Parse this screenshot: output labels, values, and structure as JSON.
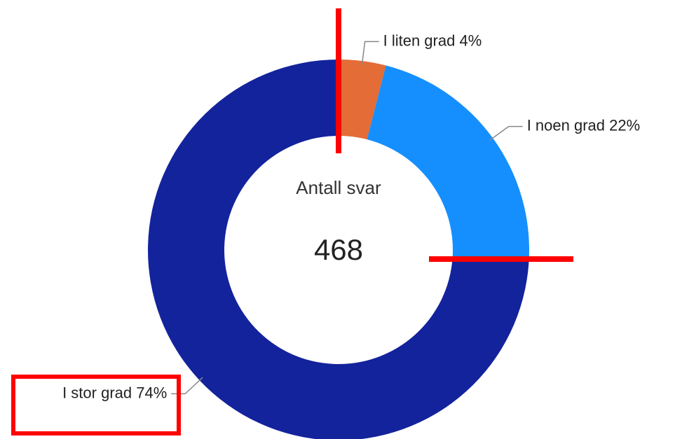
{
  "chart_data": {
    "type": "pie",
    "center_label": "Antall svar",
    "center_value": "468",
    "categories": [
      "I liten grad",
      "I noen grad",
      "I stor grad"
    ],
    "values": [
      4,
      22,
      74
    ],
    "value_labels": [
      "4%",
      "22%",
      "74%"
    ],
    "colors": [
      "#e36c37",
      "#168ffe",
      "#13239c"
    ]
  }
}
